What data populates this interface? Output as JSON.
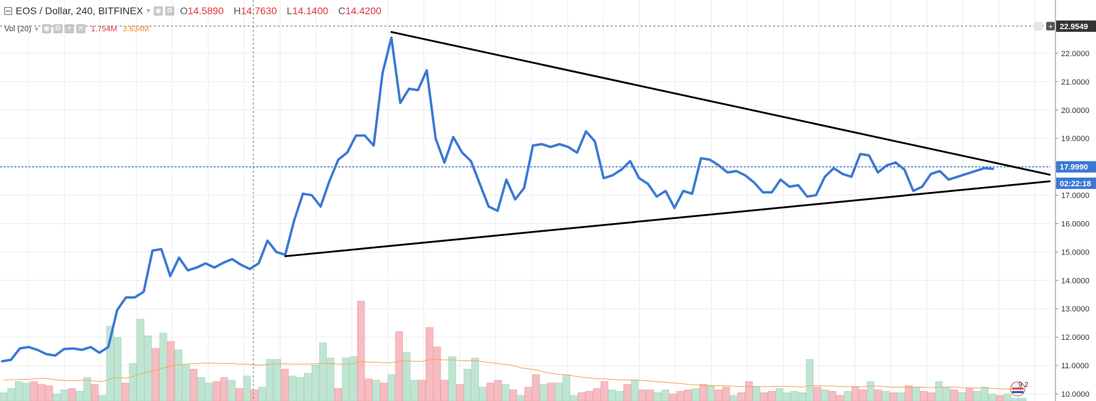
{
  "header": {
    "symbol_title": "EOS / Dollar, 240, BITFINEX",
    "ohlc": [
      {
        "key": "O",
        "value": "14.5890"
      },
      {
        "key": "H",
        "value": "14.7630"
      },
      {
        "key": "L",
        "value": "14.1400"
      },
      {
        "key": "C",
        "value": "14.4200"
      }
    ],
    "volume_label": "Vol (20)",
    "volume_value": "1.754M",
    "volume_ma_value": "3.634M",
    "crosshair_price": "22.9549",
    "plus_glyph": "+"
  },
  "colors": {
    "price_line": "#3a78d4",
    "trendline": "#000000",
    "vol_up": "#bfe5d2",
    "vol_down": "#f6bcc1",
    "vol_ma": "#f5a35c",
    "current_price_bg": "#3a78d4",
    "countdown_bg": "#3a78d4",
    "crosshair_label_bg": "#333333",
    "grid": "#ececec"
  },
  "chart_data": {
    "type": "line",
    "series": [
      {
        "values": [
          11.15,
          11.2,
          11.6,
          11.65,
          11.55,
          11.4,
          11.35,
          11.58,
          11.6,
          11.55,
          11.65,
          11.45,
          11.65,
          12.95,
          13.4,
          13.4,
          13.6,
          15.05,
          15.1,
          14.15,
          14.8,
          14.35,
          14.45,
          14.6,
          14.45,
          14.62,
          14.75,
          14.55,
          14.4,
          14.6,
          15.4,
          15.0,
          14.9,
          16.1,
          17.05,
          17.0,
          16.6,
          17.5,
          18.25,
          18.5,
          19.1,
          19.1,
          18.75,
          21.3,
          22.55,
          20.25,
          20.75,
          20.7,
          21.4,
          19.0,
          18.15,
          19.05,
          18.5,
          18.2,
          17.4,
          16.6,
          16.45,
          17.55,
          16.85,
          17.25,
          18.75,
          18.8,
          18.7,
          18.8,
          18.7,
          18.5,
          19.25,
          18.9,
          17.6,
          17.7,
          17.9,
          18.2,
          17.6,
          17.4,
          16.95,
          17.15,
          16.55,
          17.15,
          17.05,
          18.3,
          18.25,
          18.05,
          17.8,
          17.85,
          17.7,
          17.45,
          17.1,
          17.1,
          17.55,
          17.3,
          17.35,
          16.95,
          17.0,
          17.65,
          17.95,
          17.75,
          17.65,
          18.45,
          18.4,
          17.8,
          18.05,
          18.15,
          17.9,
          17.15,
          17.3,
          17.75,
          17.85,
          17.55,
          17.65,
          17.75,
          17.85,
          17.95,
          17.93
        ]
      }
    ],
    "volume": {
      "values": [
        0.3,
        0.45,
        0.7,
        0.65,
        0.7,
        0.6,
        0.55,
        0.25,
        0.4,
        0.45,
        0.35,
        0.85,
        0.6,
        0.2,
        2.7,
        2.3,
        0.65,
        1.35,
        2.95,
        2.35,
        1.9,
        2.45,
        2.15,
        1.85,
        1.3,
        1.15,
        0.85,
        0.65,
        0.7,
        0.85,
        0.75,
        0.45,
        0.9,
        0.4,
        0.5,
        1.5,
        1.5,
        1.15,
        0.9,
        0.85,
        1.0,
        1.3,
        2.1,
        1.55,
        0.45,
        1.55,
        1.6,
        3.6,
        0.8,
        0.75,
        0.65,
        0.95,
        2.5,
        1.75,
        0.75,
        0.75,
        2.65,
        1.95,
        0.75,
        1.6,
        0.6,
        1.15,
        1.55,
        0.5,
        0.65,
        0.75,
        0.6,
        0.4,
        0.2,
        0.5,
        0.95,
        0.6,
        0.65,
        0.65,
        0.95,
        0.2,
        0.3,
        0.35,
        0.45,
        0.7,
        0.4,
        0.35,
        0.6,
        0.75,
        0.4,
        0.4,
        0.3,
        0.4,
        0.25,
        0.35,
        0.4,
        0.45,
        0.6,
        0.55,
        0.4,
        0.5,
        0.2,
        0.3,
        0.7,
        0.5,
        0.3,
        0.35,
        0.45,
        0.3,
        0.35,
        0.3,
        1.5,
        0.5,
        0.4,
        0.35,
        0.2,
        0.35,
        0.5,
        0.4,
        0.7,
        0.4,
        0.35,
        0.3,
        0.3,
        0.55,
        0.5,
        0.35,
        0.3,
        0.7,
        0.5,
        0.4,
        0.3,
        0.45,
        0.35,
        0.5,
        0.25,
        0.2,
        0.25,
        0.1,
        0.1
      ],
      "up": [
        1,
        1,
        1,
        1,
        0,
        0,
        0,
        1,
        1,
        0,
        1,
        1,
        0,
        1,
        1,
        1,
        0,
        1,
        1,
        1,
        0,
        1,
        0,
        1,
        1,
        0,
        1,
        1,
        0,
        0,
        1,
        0,
        1,
        0,
        1,
        1,
        1,
        0,
        1,
        1,
        1,
        1,
        1,
        1,
        0,
        1,
        1,
        0,
        0,
        1,
        0,
        1,
        0,
        1,
        1,
        0,
        0,
        0,
        0,
        1,
        0,
        1,
        1,
        1,
        0,
        0,
        1,
        0,
        1,
        0,
        0,
        1,
        0,
        1,
        1,
        1,
        0,
        0,
        0,
        0,
        1,
        1,
        0,
        1,
        0,
        0,
        1,
        1,
        0,
        0,
        0,
        1,
        0,
        1,
        0,
        0,
        1,
        0,
        0,
        1,
        0,
        0,
        1,
        1,
        1,
        1,
        1,
        0,
        1,
        0,
        0,
        1,
        0,
        0,
        1,
        0,
        1,
        0,
        1,
        0,
        1,
        0,
        0,
        1,
        1,
        0,
        1,
        0,
        1,
        1,
        1,
        0,
        1,
        1,
        1,
        1,
        1
      ],
      "ma": [
        0.75,
        0.77,
        0.78,
        0.78,
        0.8,
        0.82,
        0.8,
        0.76,
        0.74,
        0.73,
        0.74,
        0.75,
        0.72,
        0.7,
        0.8,
        0.85,
        0.82,
        0.88,
        0.98,
        1.05,
        1.1,
        1.2,
        1.25,
        1.3,
        1.33,
        1.35,
        1.36,
        1.37,
        1.36,
        1.36,
        1.35,
        1.33,
        1.33,
        1.3,
        1.3,
        1.32,
        1.34,
        1.34,
        1.33,
        1.33,
        1.33,
        1.34,
        1.36,
        1.35,
        1.33,
        1.33,
        1.34,
        1.42,
        1.4,
        1.4,
        1.38,
        1.38,
        1.43,
        1.44,
        1.43,
        1.43,
        1.48,
        1.5,
        1.48,
        1.49,
        1.45,
        1.45,
        1.46,
        1.42,
        1.38,
        1.35,
        1.32,
        1.28,
        1.2,
        1.16,
        1.12,
        1.05,
        1.0,
        0.96,
        0.95,
        0.9,
        0.86,
        0.83,
        0.8,
        0.8,
        0.78,
        0.77,
        0.76,
        0.76,
        0.74,
        0.72,
        0.7,
        0.68,
        0.65,
        0.63,
        0.6,
        0.58,
        0.57,
        0.56,
        0.55,
        0.55,
        0.53,
        0.52,
        0.53,
        0.52,
        0.52,
        0.52,
        0.53,
        0.52,
        0.52,
        0.5,
        0.55,
        0.55,
        0.54,
        0.54,
        0.52,
        0.52,
        0.52,
        0.52,
        0.54,
        0.53,
        0.52,
        0.5,
        0.5,
        0.5,
        0.5,
        0.5,
        0.48,
        0.5,
        0.5,
        0.5,
        0.48,
        0.48,
        0.47,
        0.47,
        0.45,
        0.44,
        0.43,
        0.42,
        0.41
      ]
    },
    "trendlines": [
      {
        "from": [
          44,
          22.75
        ],
        "to": [
          117,
          17.7
        ]
      },
      {
        "from": [
          32,
          14.85
        ],
        "to": [
          117,
          17.5
        ]
      }
    ],
    "crosshair": {
      "x_index": 28,
      "price": 22.9549
    },
    "current_price": {
      "value": "17.9990",
      "level": 17.999
    },
    "countdown": {
      "value": "02:22:18",
      "level": 17.42
    },
    "y_ticks": [
      "22.0000",
      "21.0000",
      "20.0000",
      "19.0000",
      "18.0000",
      "17.0000",
      "16.0000",
      "15.0000",
      "14.0000",
      "13.0000",
      "12.0000",
      "11.0000",
      "10.0000"
    ],
    "ylim": [
      9.95,
      23.05
    ],
    "grid": true,
    "session_marker": "9 2"
  }
}
